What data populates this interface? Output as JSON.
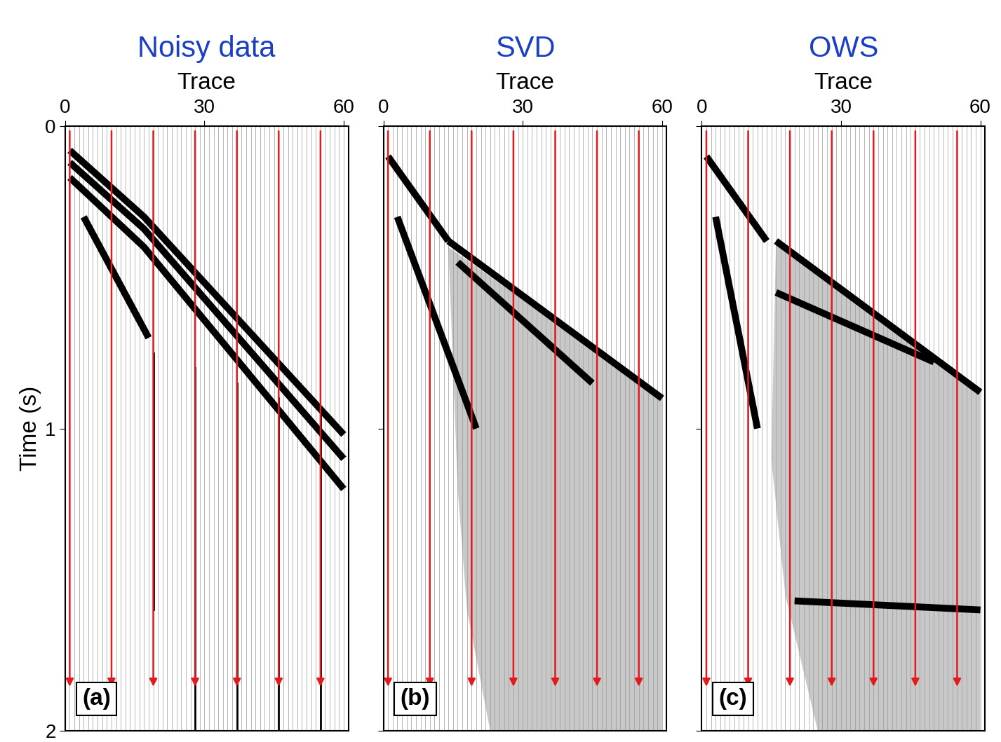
{
  "chart_data": [
    {
      "type": "wiggle",
      "title": "Noisy data",
      "x_label": "Trace",
      "y_label": "Time (s)",
      "panel_label": "(a)",
      "color": "#1a3fc4",
      "xlim": [
        0,
        61
      ],
      "ylim": [
        2,
        0
      ],
      "xticks": [
        0,
        30,
        60
      ],
      "yticks": [
        0,
        1,
        2
      ],
      "arrows": [
        1,
        10,
        19,
        28,
        37,
        46,
        55
      ],
      "arrow_color": "#e31a1c",
      "events": [
        {
          "x": [
            1,
            17,
            60
          ],
          "y": [
            0.08,
            0.3,
            1.02
          ]
        },
        {
          "x": [
            1,
            17,
            60
          ],
          "y": [
            0.12,
            0.34,
            1.1
          ]
        },
        {
          "x": [
            1,
            17,
            60
          ],
          "y": [
            0.17,
            0.4,
            1.2
          ]
        },
        {
          "x": [
            4,
            18
          ],
          "y": [
            0.3,
            0.7
          ]
        }
      ],
      "noise_traces": [
        {
          "trace": 19,
          "y": [
            0.75,
            1.6
          ]
        },
        {
          "trace": 28,
          "y": [
            0.8,
            2.0
          ]
        },
        {
          "trace": 37,
          "y": [
            0.85,
            2.0
          ]
        },
        {
          "trace": 46,
          "y": [
            0.9,
            2.0
          ]
        },
        {
          "trace": 55,
          "y": [
            0.95,
            2.0
          ]
        }
      ],
      "signal_region": null
    },
    {
      "type": "wiggle",
      "title": "SVD",
      "x_label": "Trace",
      "y_label": null,
      "panel_label": "(b)",
      "color": "#1a3fc4",
      "tick_labels": "x",
      "xlim": [
        0,
        61
      ],
      "ylim": [
        2,
        0
      ],
      "xticks": [
        0,
        30,
        60
      ],
      "yticks": [
        0,
        1,
        2
      ],
      "arrows": [
        1,
        10,
        19,
        28,
        37,
        46,
        55
      ],
      "arrow_color": "#e31a1c",
      "events": [
        {
          "x": [
            1,
            14
          ],
          "y": [
            0.1,
            0.38
          ]
        },
        {
          "x": [
            3,
            20
          ],
          "y": [
            0.3,
            1.0
          ]
        },
        {
          "x": [
            14,
            60
          ],
          "y": [
            0.38,
            0.9
          ]
        },
        {
          "x": [
            16,
            45
          ],
          "y": [
            0.45,
            0.85
          ]
        }
      ],
      "noise_traces": [],
      "signal_region": {
        "x": [
          14,
          60,
          60,
          23,
          18,
          16
        ],
        "y": [
          0.4,
          0.9,
          2.0,
          2.0,
          1.6,
          1.2
        ]
      }
    },
    {
      "type": "wiggle",
      "title": "OWS",
      "x_label": "Trace",
      "y_label": null,
      "panel_label": "(c)",
      "color": "#1a3fc4",
      "tick_labels": "x",
      "xlim": [
        0,
        61
      ],
      "ylim": [
        2,
        0
      ],
      "xticks": [
        0,
        30,
        60
      ],
      "yticks": [
        0,
        1,
        2
      ],
      "arrows": [
        1,
        10,
        19,
        28,
        37,
        46,
        55
      ],
      "arrow_color": "#e31a1c",
      "events": [
        {
          "x": [
            1,
            14
          ],
          "y": [
            0.1,
            0.38
          ]
        },
        {
          "x": [
            3,
            12
          ],
          "y": [
            0.3,
            1.0
          ]
        },
        {
          "x": [
            16,
            60
          ],
          "y": [
            0.38,
            0.88
          ]
        },
        {
          "x": [
            16,
            50
          ],
          "y": [
            0.55,
            0.78
          ]
        },
        {
          "x": [
            20,
            60
          ],
          "y": [
            1.57,
            1.6
          ]
        }
      ],
      "noise_traces": [],
      "signal_region": {
        "x": [
          16,
          60,
          60,
          25,
          18,
          15
        ],
        "y": [
          0.38,
          0.88,
          2.0,
          2.0,
          1.55,
          1.1
        ]
      }
    }
  ]
}
